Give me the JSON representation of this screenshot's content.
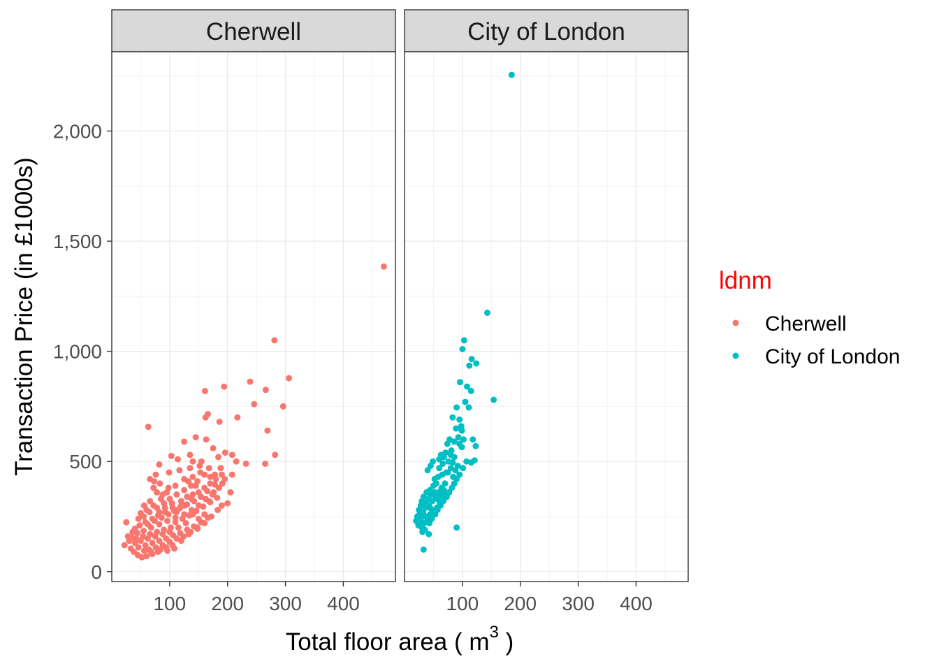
{
  "chart_data": {
    "type": "scatter",
    "facets": [
      "Cherwell",
      "City of London"
    ],
    "xlabel": "Total floor area ( m",
    "xlabel_superscript": "3",
    "xlabel_close": " )",
    "ylabel": "Transaction Price (in £1000s)",
    "xlim": [
      0,
      490
    ],
    "ylim": [
      -45,
      2360
    ],
    "x_ticks": [
      100,
      200,
      300,
      400
    ],
    "x_tick_labels": [
      "100",
      "200",
      "300",
      "400"
    ],
    "y_ticks": [
      0,
      500,
      1000,
      1500,
      2000
    ],
    "y_tick_labels": [
      "0",
      "500",
      "1,000",
      "1,500",
      "2,000"
    ],
    "grid": true,
    "legend": {
      "title": "ldnm",
      "position": "right",
      "entries": [
        "Cherwell",
        "City of London"
      ]
    },
    "colors": {
      "Cherwell": "#F8766D",
      "City of London": "#00BFC4"
    },
    "series": [
      {
        "name": "Cherwell",
        "points": [
          [
            470,
            1385
          ],
          [
            281,
            1050
          ],
          [
            306,
            878
          ],
          [
            194,
            840
          ],
          [
            239,
            862
          ],
          [
            266,
            825
          ],
          [
            161,
            820
          ],
          [
            296,
            750
          ],
          [
            246,
            760
          ],
          [
            166,
            715
          ],
          [
            162,
            700
          ],
          [
            217,
            700
          ],
          [
            186,
            680
          ],
          [
            269,
            640
          ],
          [
            282,
            530
          ],
          [
            265,
            490
          ],
          [
            63,
            657
          ],
          [
            125,
            590
          ],
          [
            145,
            610
          ],
          [
            163,
            600
          ],
          [
            175,
            560
          ],
          [
            196,
            540
          ],
          [
            208,
            530
          ],
          [
            232,
            490
          ],
          [
            215,
            500
          ],
          [
            184,
            520
          ],
          [
            155,
            500
          ],
          [
            135,
            530
          ],
          [
            114,
            510
          ],
          [
            103,
            525
          ],
          [
            82,
            486
          ],
          [
            76,
            440
          ],
          [
            99,
            450
          ],
          [
            73,
            410
          ],
          [
            153,
            450
          ],
          [
            170,
            430
          ],
          [
            135,
            470
          ],
          [
            117,
            460
          ],
          [
            188,
            470
          ],
          [
            208,
            440
          ],
          [
            191,
            400
          ],
          [
            176,
            360
          ],
          [
            168,
            320
          ],
          [
            112,
            270
          ],
          [
            78,
            360
          ],
          [
            25,
            224
          ],
          [
            22,
            120
          ],
          [
            30,
            140
          ],
          [
            33,
            105
          ],
          [
            38,
            90
          ],
          [
            45,
            75
          ],
          [
            52,
            65
          ],
          [
            60,
            70
          ],
          [
            70,
            80
          ],
          [
            80,
            90
          ],
          [
            94,
            110
          ],
          [
            105,
            120
          ],
          [
            120,
            140
          ],
          [
            133,
            170
          ],
          [
            148,
            200
          ],
          [
            160,
            220
          ],
          [
            172,
            250
          ],
          [
            183,
            280
          ],
          [
            140,
            260
          ],
          [
            128,
            220
          ],
          [
            115,
            200
          ],
          [
            100,
            180
          ],
          [
            88,
            170
          ],
          [
            75,
            160
          ],
          [
            62,
            150
          ],
          [
            50,
            140
          ],
          [
            40,
            130
          ],
          [
            35,
            155
          ],
          [
            44,
            175
          ],
          [
            55,
            185
          ],
          [
            68,
            200
          ],
          [
            82,
            215
          ],
          [
            96,
            230
          ],
          [
            110,
            245
          ],
          [
            125,
            260
          ],
          [
            138,
            280
          ],
          [
            150,
            300
          ],
          [
            162,
            330
          ],
          [
            174,
            350
          ],
          [
            185,
            380
          ],
          [
            120,
            300
          ],
          [
            105,
            290
          ],
          [
            92,
            270
          ],
          [
            80,
            255
          ],
          [
            70,
            240
          ],
          [
            58,
            225
          ],
          [
            48,
            210
          ],
          [
            40,
            195
          ],
          [
            55,
            250
          ],
          [
            65,
            270
          ],
          [
            78,
            290
          ],
          [
            90,
            310
          ],
          [
            100,
            330
          ],
          [
            112,
            350
          ],
          [
            125,
            370
          ],
          [
            137,
            390
          ],
          [
            148,
            410
          ],
          [
            95,
            360
          ],
          [
            85,
            330
          ],
          [
            72,
            300
          ],
          [
            60,
            280
          ],
          [
            50,
            265
          ],
          [
            62,
            215
          ],
          [
            74,
            230
          ],
          [
            86,
            245
          ],
          [
            98,
            260
          ],
          [
            108,
            275
          ],
          [
            118,
            290
          ],
          [
            130,
            305
          ],
          [
            142,
            320
          ],
          [
            154,
            340
          ],
          [
            165,
            365
          ],
          [
            178,
            395
          ],
          [
            195,
            420
          ],
          [
            102,
            200
          ],
          [
            90,
            190
          ],
          [
            78,
            180
          ],
          [
            66,
            170
          ],
          [
            54,
            160
          ],
          [
            42,
            150
          ],
          [
            58,
            120
          ],
          [
            70,
            130
          ],
          [
            82,
            140
          ],
          [
            94,
            150
          ],
          [
            106,
            165
          ],
          [
            118,
            175
          ],
          [
            130,
            190
          ],
          [
            142,
            205
          ],
          [
            154,
            225
          ],
          [
            166,
            245
          ],
          [
            110,
            225
          ],
          [
            122,
            240
          ],
          [
            134,
            255
          ],
          [
            146,
            275
          ],
          [
            158,
            295
          ],
          [
            170,
            315
          ],
          [
            182,
            335
          ],
          [
            64,
            100
          ],
          [
            76,
            110
          ],
          [
            88,
            120
          ],
          [
            100,
            135
          ],
          [
            112,
            150
          ],
          [
            124,
            160
          ],
          [
            136,
            180
          ],
          [
            148,
            195
          ],
          [
            46,
            110
          ],
          [
            56,
            95
          ],
          [
            68,
            90
          ],
          [
            84,
            100
          ],
          [
            96,
            95
          ],
          [
            108,
            105
          ],
          [
            200,
            310
          ],
          [
            205,
            360
          ],
          [
            190,
            300
          ],
          [
            150,
            240
          ],
          [
            160,
            260
          ],
          [
            120,
            320
          ],
          [
            130,
            340
          ],
          [
            140,
            350
          ],
          [
            104,
            310
          ],
          [
            92,
            290
          ],
          [
            82,
            270
          ],
          [
            114,
            280
          ],
          [
            126,
            300
          ],
          [
            138,
            330
          ],
          [
            150,
            360
          ],
          [
            160,
            380
          ],
          [
            170,
            400
          ],
          [
            180,
            420
          ],
          [
            190,
            440
          ],
          [
            125,
            420
          ],
          [
            140,
            430
          ],
          [
            110,
            390
          ],
          [
            98,
            380
          ],
          [
            88,
            350
          ],
          [
            66,
            320
          ],
          [
            56,
            300
          ],
          [
            46,
            240
          ],
          [
            36,
            180
          ],
          [
            28,
            160
          ],
          [
            66,
            420
          ],
          [
            72,
            380
          ],
          [
            83,
            400
          ],
          [
            160,
            440
          ],
          [
            178,
            440
          ],
          [
            145,
            390
          ],
          [
            132,
            410
          ],
          [
            168,
            470
          ],
          [
            152,
            480
          ],
          [
            140,
            500
          ]
        ]
      },
      {
        "name": "City of London",
        "points": [
          [
            185,
            2255
          ],
          [
            143,
            1175
          ],
          [
            103,
            1050
          ],
          [
            100,
            1010
          ],
          [
            116,
            965
          ],
          [
            124,
            945
          ],
          [
            112,
            935
          ],
          [
            108,
            840
          ],
          [
            115,
            820
          ],
          [
            96,
            860
          ],
          [
            90,
            745
          ],
          [
            105,
            770
          ],
          [
            111,
            745
          ],
          [
            154,
            780
          ],
          [
            83,
            700
          ],
          [
            95,
            690
          ],
          [
            98,
            660
          ],
          [
            89,
            650
          ],
          [
            93,
            610
          ],
          [
            99,
            640
          ],
          [
            118,
            600
          ],
          [
            123,
            570
          ],
          [
            78,
            600
          ],
          [
            86,
            590
          ],
          [
            74,
            580
          ],
          [
            81,
            550
          ],
          [
            71,
            540
          ],
          [
            63,
            530
          ],
          [
            60,
            510
          ],
          [
            68,
            520
          ],
          [
            76,
            500
          ],
          [
            83,
            495
          ],
          [
            92,
            480
          ],
          [
            101,
            470
          ],
          [
            107,
            500
          ],
          [
            115,
            495
          ],
          [
            121,
            505
          ],
          [
            88,
            460
          ],
          [
            80,
            470
          ],
          [
            72,
            450
          ],
          [
            65,
            440
          ],
          [
            58,
            430
          ],
          [
            52,
            420
          ],
          [
            49,
            500
          ],
          [
            45,
            480
          ],
          [
            40,
            460
          ],
          [
            55,
            400
          ],
          [
            50,
            390
          ],
          [
            44,
            370
          ],
          [
            38,
            360
          ],
          [
            33,
            340
          ],
          [
            30,
            320
          ],
          [
            28,
            300
          ],
          [
            25,
            280
          ],
          [
            22,
            250
          ],
          [
            20,
            230
          ],
          [
            24,
            210
          ],
          [
            30,
            200
          ],
          [
            35,
            190
          ],
          [
            43,
            220
          ],
          [
            47,
            240
          ],
          [
            53,
            260
          ],
          [
            57,
            280
          ],
          [
            62,
            300
          ],
          [
            67,
            320
          ],
          [
            73,
            340
          ],
          [
            77,
            360
          ],
          [
            82,
            380
          ],
          [
            86,
            400
          ],
          [
            90,
            420
          ],
          [
            95,
            440
          ],
          [
            70,
            400
          ],
          [
            64,
            380
          ],
          [
            59,
            360
          ],
          [
            54,
            340
          ],
          [
            48,
            320
          ],
          [
            42,
            300
          ],
          [
            36,
            290
          ],
          [
            32,
            270
          ],
          [
            38,
            250
          ],
          [
            44,
            260
          ],
          [
            50,
            270
          ],
          [
            56,
            290
          ],
          [
            61,
            310
          ],
          [
            66,
            330
          ],
          [
            72,
            350
          ],
          [
            40,
            230
          ],
          [
            34,
            220
          ],
          [
            28,
            240
          ],
          [
            26,
            260
          ],
          [
            31,
            180
          ],
          [
            42,
            170
          ],
          [
            90,
            200
          ],
          [
            33,
            100
          ],
          [
            60,
            470
          ],
          [
            66,
            490
          ],
          [
            75,
            450
          ],
          [
            84,
            430
          ],
          [
            52,
            360
          ],
          [
            46,
            350
          ],
          [
            57,
            330
          ],
          [
            63,
            350
          ],
          [
            68,
            370
          ],
          [
            36,
            310
          ],
          [
            41,
            330
          ],
          [
            25,
            230
          ],
          [
            29,
            220
          ],
          [
            35,
            250
          ],
          [
            48,
            280
          ],
          [
            44,
            290
          ],
          [
            99,
            565
          ],
          [
            102,
            600
          ],
          [
            95,
            580
          ],
          [
            86,
            520
          ],
          [
            80,
            530
          ]
        ]
      }
    ]
  }
}
